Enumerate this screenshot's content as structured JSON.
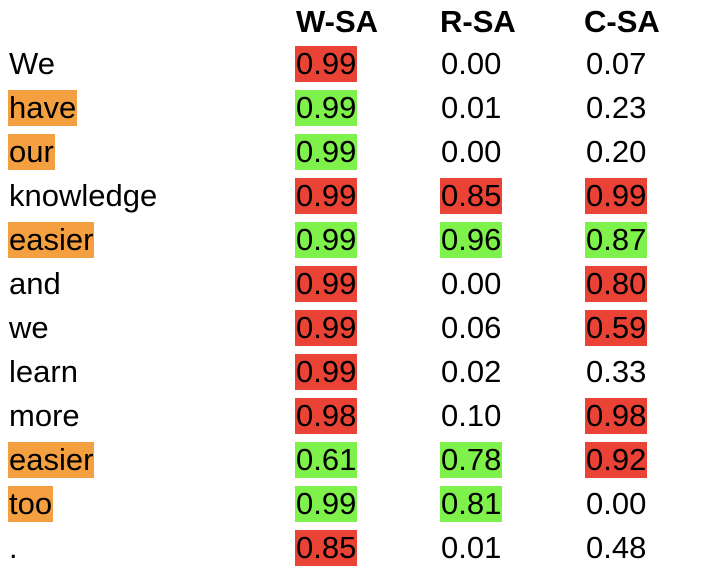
{
  "columns": [
    "W-SA",
    "R-SA",
    "C-SA"
  ],
  "highlight_colors": {
    "word": "#f5a040",
    "negative": "#ea4335",
    "positive": "#7ef24a"
  },
  "rows": [
    {
      "word": "We",
      "word_hl": "none",
      "wsa": {
        "value": "0.99",
        "hl": "red"
      },
      "rsa": {
        "value": "0.00",
        "hl": "none"
      },
      "csa": {
        "value": "0.07",
        "hl": "none"
      }
    },
    {
      "word": "have",
      "word_hl": "orange",
      "wsa": {
        "value": "0.99",
        "hl": "green"
      },
      "rsa": {
        "value": "0.01",
        "hl": "none"
      },
      "csa": {
        "value": "0.23",
        "hl": "none"
      }
    },
    {
      "word": "our",
      "word_hl": "orange",
      "wsa": {
        "value": "0.99",
        "hl": "green"
      },
      "rsa": {
        "value": "0.00",
        "hl": "none"
      },
      "csa": {
        "value": "0.20",
        "hl": "none"
      }
    },
    {
      "word": "knowledge",
      "word_hl": "none",
      "wsa": {
        "value": "0.99",
        "hl": "red"
      },
      "rsa": {
        "value": "0.85",
        "hl": "red"
      },
      "csa": {
        "value": "0.99",
        "hl": "red"
      }
    },
    {
      "word": "easier",
      "word_hl": "orange",
      "wsa": {
        "value": "0.99",
        "hl": "green"
      },
      "rsa": {
        "value": "0.96",
        "hl": "green"
      },
      "csa": {
        "value": "0.87",
        "hl": "green"
      }
    },
    {
      "word": "and",
      "word_hl": "none",
      "wsa": {
        "value": "0.99",
        "hl": "red"
      },
      "rsa": {
        "value": "0.00",
        "hl": "none"
      },
      "csa": {
        "value": "0.80",
        "hl": "red"
      }
    },
    {
      "word": "we",
      "word_hl": "none",
      "wsa": {
        "value": "0.99",
        "hl": "red"
      },
      "rsa": {
        "value": "0.06",
        "hl": "none"
      },
      "csa": {
        "value": "0.59",
        "hl": "red"
      }
    },
    {
      "word": "learn",
      "word_hl": "none",
      "wsa": {
        "value": "0.99",
        "hl": "red"
      },
      "rsa": {
        "value": "0.02",
        "hl": "none"
      },
      "csa": {
        "value": "0.33",
        "hl": "none"
      }
    },
    {
      "word": "more",
      "word_hl": "none",
      "wsa": {
        "value": "0.98",
        "hl": "red"
      },
      "rsa": {
        "value": "0.10",
        "hl": "none"
      },
      "csa": {
        "value": "0.98",
        "hl": "red"
      }
    },
    {
      "word": "easier",
      "word_hl": "orange",
      "wsa": {
        "value": "0.61",
        "hl": "green"
      },
      "rsa": {
        "value": "0.78",
        "hl": "green"
      },
      "csa": {
        "value": "0.92",
        "hl": "red"
      }
    },
    {
      "word": "too",
      "word_hl": "orange",
      "wsa": {
        "value": "0.99",
        "hl": "green"
      },
      "rsa": {
        "value": "0.81",
        "hl": "green"
      },
      "csa": {
        "value": "0.00",
        "hl": "none"
      }
    },
    {
      "word": ".",
      "word_hl": "none",
      "wsa": {
        "value": "0.85",
        "hl": "red"
      },
      "rsa": {
        "value": "0.01",
        "hl": "none"
      },
      "csa": {
        "value": "0.48",
        "hl": "none"
      }
    }
  ]
}
